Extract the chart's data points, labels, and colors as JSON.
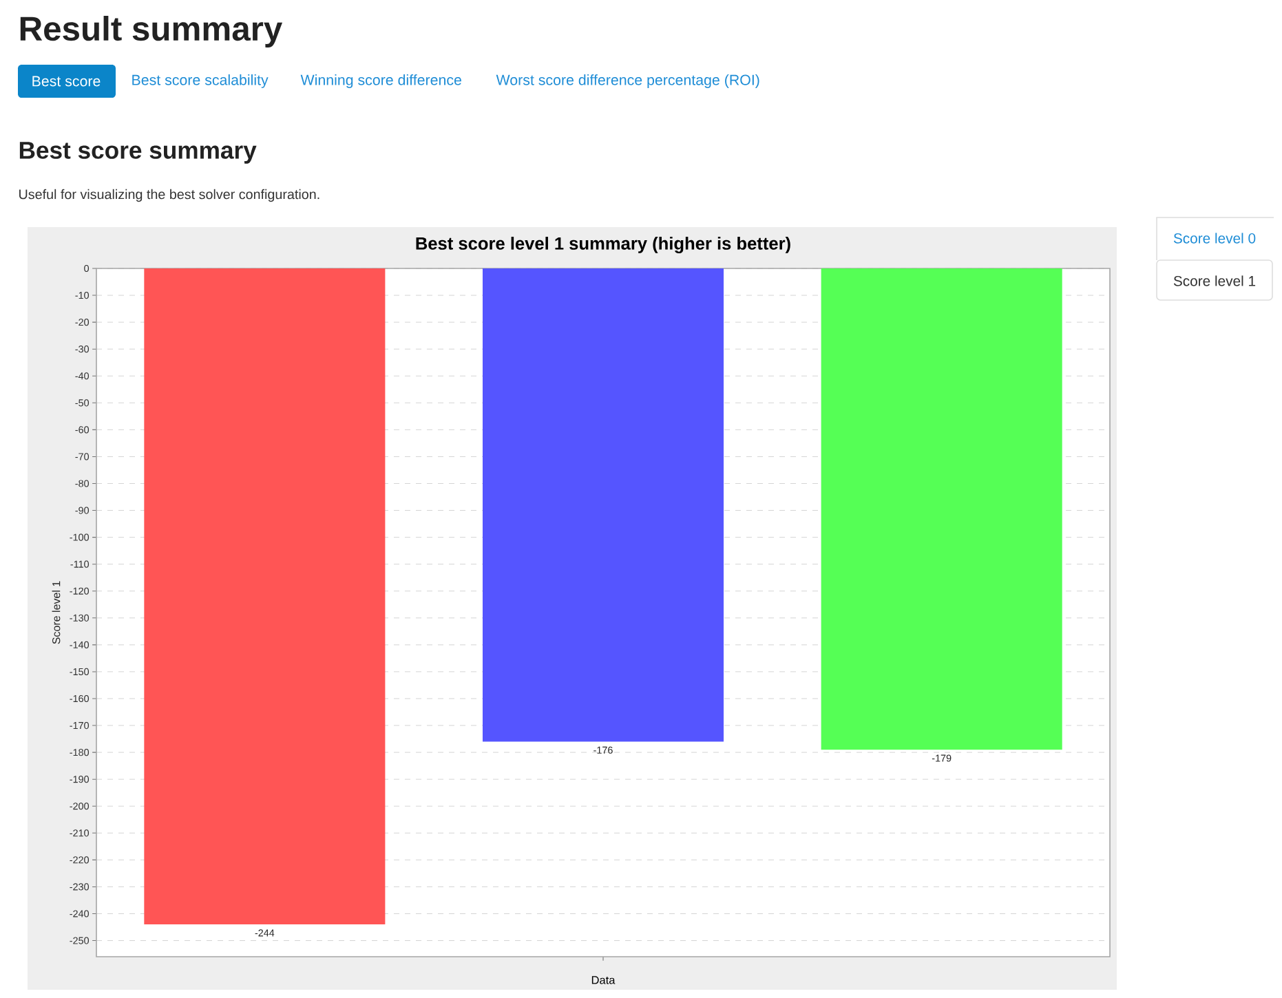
{
  "chart_data": {
    "type": "bar",
    "title": "Best score level 1 summary (higher is better)",
    "xlabel": "Data",
    "ylabel": "Score level 1",
    "categories": [
      null
    ],
    "series": [
      {
        "color": "#ff5555",
        "values": [
          -244
        ]
      },
      {
        "color": "#5555ff",
        "values": [
          -176
        ]
      },
      {
        "color": "#55ff55",
        "values": [
          -179
        ]
      }
    ],
    "ylim": [
      -256,
      0
    ],
    "yticks": [
      -250,
      -240,
      -230,
      -220,
      -210,
      -200,
      -190,
      -180,
      -170,
      -160,
      -150,
      -140,
      -130,
      -120,
      -110,
      -100,
      -90,
      -80,
      -70,
      -60,
      -50,
      -40,
      -30,
      -20,
      -10,
      0
    ],
    "grid": "y",
    "data_labels": true,
    "annotations": [
      "Result summary",
      "Best score",
      "Best score scalability",
      "Winning score difference",
      "Worst score difference percentage (ROI)",
      "Best score summary",
      "Useful for visualizing the best solver configuration.",
      "Score level 0",
      "Score level 1"
    ]
  }
}
